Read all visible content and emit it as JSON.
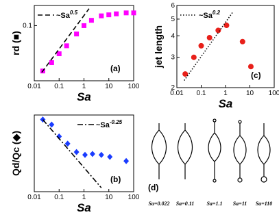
{
  "chart_data": [
    {
      "type": "scatter",
      "panel_label": "(a)",
      "xlabel": "Sa",
      "ylabel": "rd (■)",
      "xscale": "log",
      "yscale": "log",
      "xlim": [
        0.01,
        100
      ],
      "ylim": [
        0.015,
        0.2
      ],
      "xticks": [
        0.01,
        0.1,
        1,
        10,
        100
      ],
      "yticks": [
        0.1
      ],
      "legend": "top-left",
      "series": [
        {
          "color": "#ff00ff",
          "marker": "square",
          "x": [
            0.022,
            0.05,
            0.1,
            0.2,
            0.5,
            1,
            2,
            5,
            10,
            20,
            50,
            100
          ],
          "values": [
            0.021,
            0.028,
            0.038,
            0.05,
            0.075,
            0.1,
            0.12,
            0.14,
            0.145,
            0.15,
            0.155,
            0.155
          ]
        },
        {
          "name": "~Sa",
          "exponent": "0.5",
          "color": "#000000",
          "line_style": "dashed",
          "x": [
            0.02,
            1.6
          ],
          "values": [
            0.02,
            0.179
          ]
        }
      ]
    },
    {
      "type": "scatter",
      "panel_label": "(b)",
      "xlabel": "Sa",
      "ylabel": "Qd/Qc (◆)",
      "xscale": "log",
      "yscale": "log",
      "xlim": [
        0.01,
        100
      ],
      "ylim": [
        0.25,
        1.15
      ],
      "xticks": [
        0.01,
        0.1,
        1,
        10,
        100
      ],
      "yticks": [],
      "legend": "top-right",
      "series": [
        {
          "color": "#1a3cff",
          "marker": "diamond",
          "x": [
            0.022,
            0.05,
            0.1,
            0.22,
            0.5,
            1.1,
            2.2,
            5,
            11,
            50
          ],
          "values": [
            1.05,
            0.95,
            0.75,
            0.65,
            0.55,
            0.52,
            0.53,
            0.52,
            0.5,
            0.46
          ]
        },
        {
          "name": "~Sa",
          "exponent": "-0.25",
          "color": "#000000",
          "line_style": "dashdot",
          "x": [
            0.022,
            5
          ],
          "values": [
            1.05,
            0.27
          ]
        }
      ]
    },
    {
      "type": "scatter",
      "panel_label": "(c)",
      "xlabel": "Sa",
      "ylabel": "jet length",
      "xscale": "log",
      "yscale": "log",
      "xlim": [
        0.01,
        100
      ],
      "ylim": [
        2,
        6
      ],
      "xticks": [
        0.01,
        0.1,
        1,
        10,
        100
      ],
      "yticks": [
        2,
        3,
        4,
        5,
        6
      ],
      "legend": "top-left",
      "series": [
        {
          "color": "#e8201a",
          "marker": "circle",
          "x": [
            0.022,
            0.05,
            0.1,
            0.22,
            0.5,
            1.1,
            5,
            11
          ],
          "values": [
            2.4,
            3.0,
            3.5,
            3.9,
            4.3,
            4.6,
            3.7,
            2.65
          ]
        },
        {
          "name": "~Sa",
          "exponent": "0.2",
          "color": "#000000",
          "line_style": "dotted",
          "x": [
            0.02,
            2
          ],
          "values": [
            2.2,
            5.5
          ]
        }
      ]
    }
  ],
  "diagram": {
    "panel_label": "(d)",
    "captions": [
      "Sa=0.022",
      "Sa=0.11",
      "Sa=1.1",
      "Sa=11",
      "Sa=110"
    ]
  }
}
